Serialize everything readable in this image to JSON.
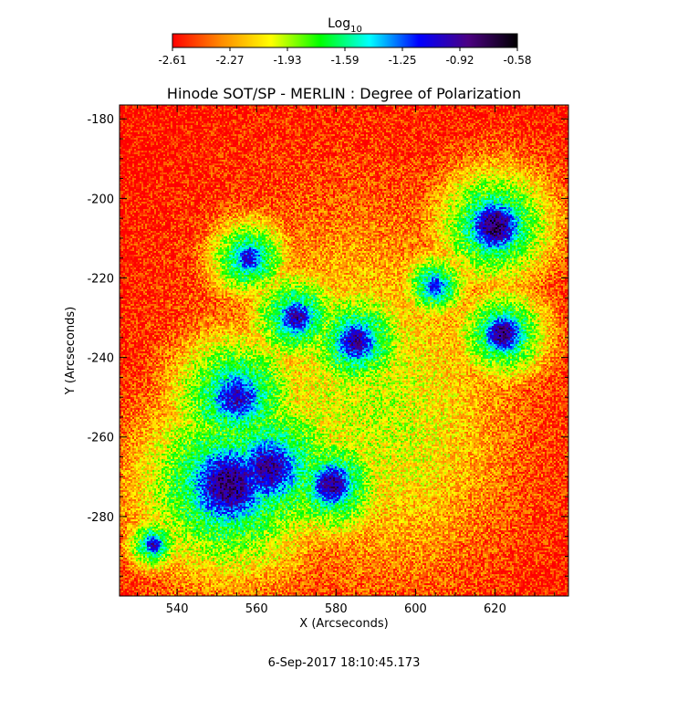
{
  "chart_data": {
    "type": "heatmap",
    "title": "Hinode SOT/SP - MERLIN : Degree of Polarization",
    "xlabel": "X (Arcseconds)",
    "ylabel": "Y (Arcseconds)",
    "xlim": [
      525.5,
      638.5
    ],
    "ylim": [
      -300,
      -176.5
    ],
    "x_ticks": [
      540,
      560,
      580,
      600,
      620
    ],
    "y_ticks": [
      -280,
      -260,
      -240,
      -220,
      -200,
      -180
    ],
    "colorbar": {
      "label_base": "Log",
      "label_sub": "10",
      "range": [
        -2.61,
        -0.58
      ],
      "ticks": [
        "-2.61",
        "-2.27",
        "-1.93",
        "-1.59",
        "-1.25",
        "-0.92",
        "-0.58"
      ],
      "colors": [
        "#ff0000",
        "#ff8c00",
        "#ffff00",
        "#00ff00",
        "#00ffff",
        "#0000ff",
        "#4b0082",
        "#000000"
      ]
    },
    "features": [
      {
        "x": 553,
        "y": -272,
        "log_value": -0.8,
        "radius": 14
      },
      {
        "x": 563,
        "y": -268,
        "log_value": -0.9,
        "radius": 12
      },
      {
        "x": 579,
        "y": -272,
        "log_value": -0.85,
        "radius": 8
      },
      {
        "x": 555,
        "y": -250,
        "log_value": -1.0,
        "radius": 10
      },
      {
        "x": 585,
        "y": -236,
        "log_value": -0.9,
        "radius": 8
      },
      {
        "x": 570,
        "y": -230,
        "log_value": -0.95,
        "radius": 7
      },
      {
        "x": 558,
        "y": -215,
        "log_value": -1.05,
        "radius": 6
      },
      {
        "x": 620,
        "y": -207,
        "log_value": -0.75,
        "radius": 9
      },
      {
        "x": 622,
        "y": -234,
        "log_value": -0.8,
        "radius": 7
      },
      {
        "x": 605,
        "y": -222,
        "log_value": -1.1,
        "radius": 5
      },
      {
        "x": 534,
        "y": -287,
        "log_value": -1.0,
        "radius": 4
      }
    ]
  },
  "timestamp": "6-Sep-2017 18:10:45.173"
}
